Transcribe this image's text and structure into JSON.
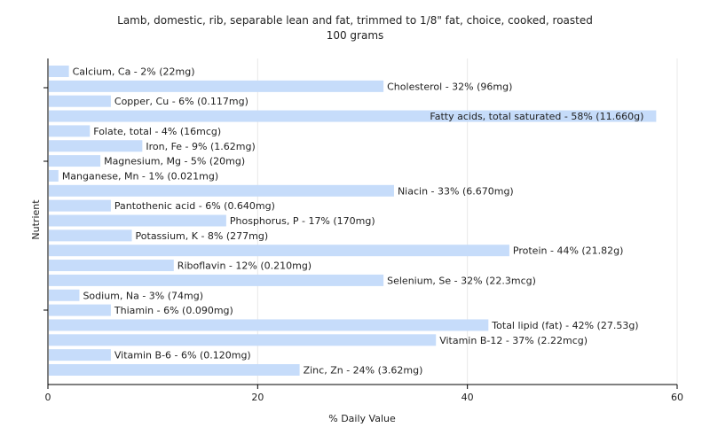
{
  "chart_data": {
    "type": "bar",
    "orientation": "horizontal",
    "title": "Lamb, domestic, rib, separable lean and fat, trimmed to 1/8\" fat, choice, cooked, roasted",
    "subtitle": "100 grams",
    "xlabel": "% Daily Value",
    "ylabel": "Nutrient",
    "xlim": [
      0,
      60
    ],
    "xticks": [
      0,
      20,
      40,
      60
    ],
    "grid": true,
    "bar_color": "#c6dcfa",
    "grid_color": "#e8e8e8",
    "categories": [
      "Calcium, Ca",
      "Cholesterol",
      "Copper, Cu",
      "Fatty acids, total saturated",
      "Folate, total",
      "Iron, Fe",
      "Magnesium, Mg",
      "Manganese, Mn",
      "Niacin",
      "Pantothenic acid",
      "Phosphorus, P",
      "Potassium, K",
      "Protein",
      "Riboflavin",
      "Selenium, Se",
      "Sodium, Na",
      "Thiamin",
      "Total lipid (fat)",
      "Vitamin B-12",
      "Vitamin B-6",
      "Zinc, Zn"
    ],
    "values": [
      2,
      32,
      6,
      58,
      4,
      9,
      5,
      1,
      33,
      6,
      17,
      8,
      44,
      12,
      32,
      3,
      6,
      42,
      37,
      6,
      24
    ],
    "labels": [
      "Calcium, Ca - 2% (22mg)",
      "Cholesterol - 32% (96mg)",
      "Copper, Cu - 6% (0.117mg)",
      "Fatty acids, total saturated - 58% (11.660g)",
      "Folate, total - 4% (16mcg)",
      "Iron, Fe - 9% (1.62mg)",
      "Magnesium, Mg - 5% (20mg)",
      "Manganese, Mn - 1% (0.021mg)",
      "Niacin - 33% (6.670mg)",
      "Pantothenic acid - 6% (0.640mg)",
      "Phosphorus, P - 17% (170mg)",
      "Potassium, K - 8% (277mg)",
      "Protein - 44% (21.82g)",
      "Riboflavin - 12% (0.210mg)",
      "Selenium, Se - 32% (22.3mcg)",
      "Sodium, Na - 3% (74mg)",
      "Thiamin - 6% (0.090mg)",
      "Total lipid (fat) - 42% (27.53g)",
      "Vitamin B-12 - 37% (2.22mcg)",
      "Vitamin B-6 - 6% (0.120mg)",
      "Zinc, Zn - 24% (3.62mg)"
    ]
  }
}
